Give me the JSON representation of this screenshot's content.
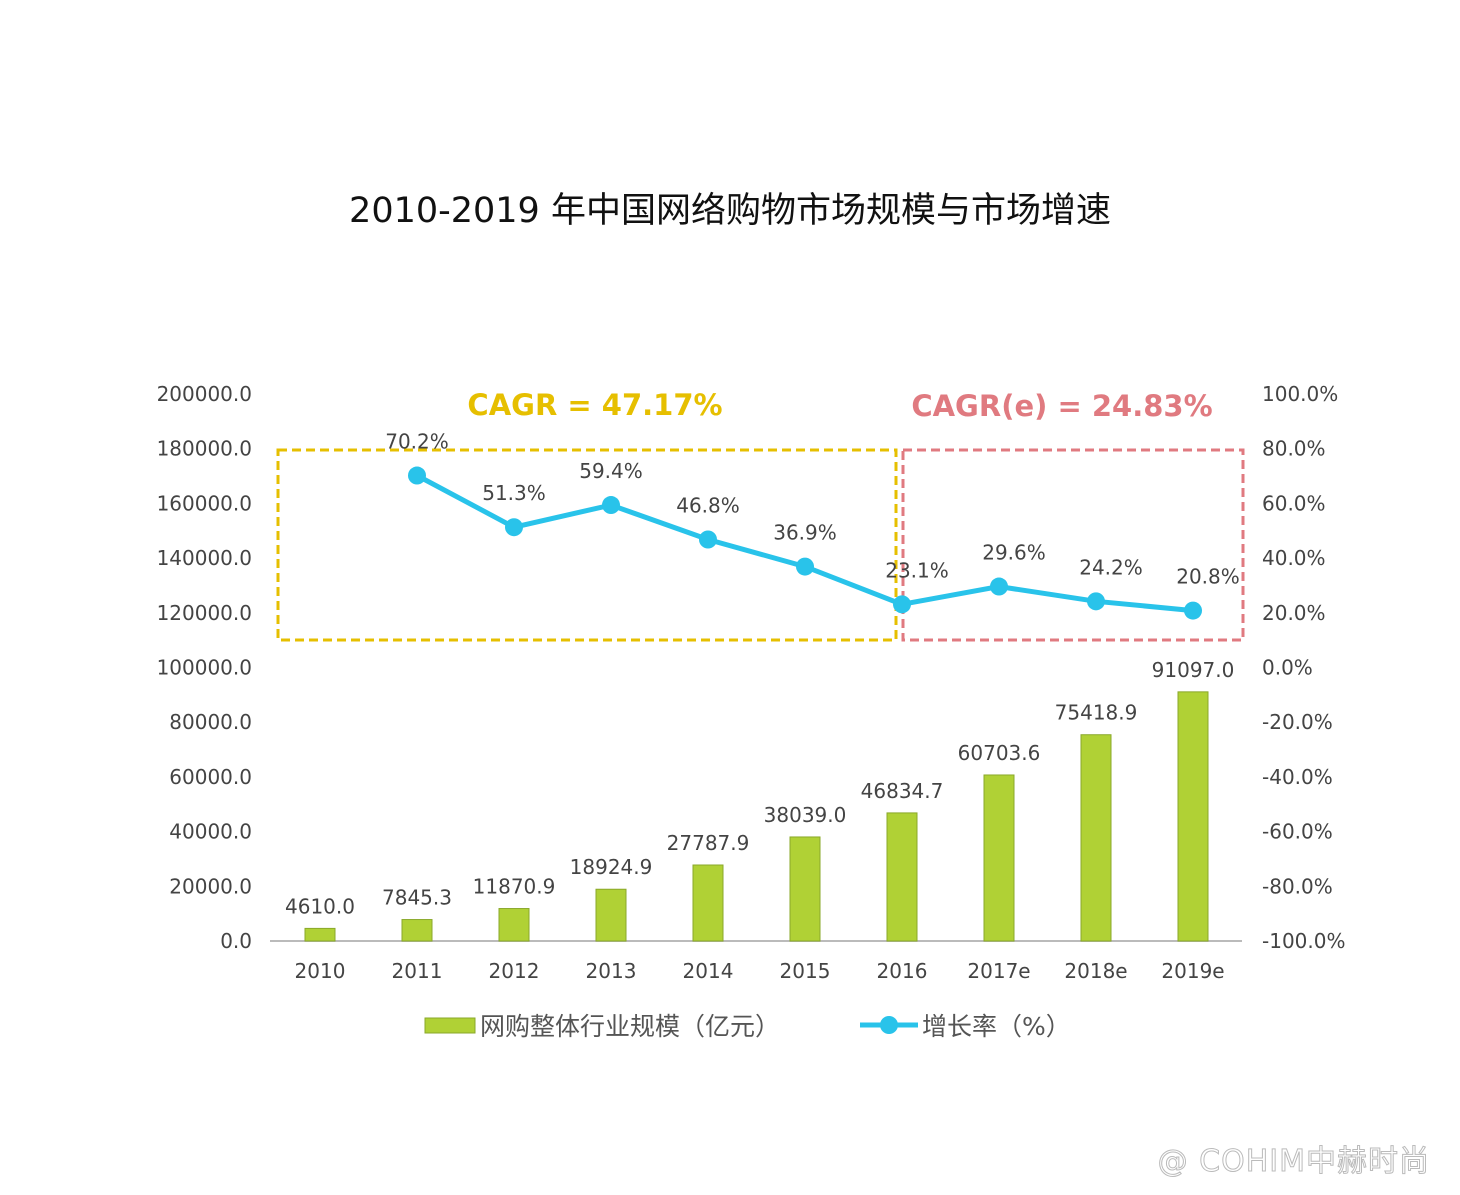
{
  "title": "2010-2019 年中国网络购物市场规模与市场增速",
  "watermark": "@ COHIM中赫时尚",
  "chart_data": {
    "type": "bar+line",
    "title": "2010-2019 年中国网络购物市场规模与市场增速",
    "categories": [
      "2010",
      "2011",
      "2012",
      "2013",
      "2014",
      "2015",
      "2016",
      "2017e",
      "2018e",
      "2019e"
    ],
    "series": [
      {
        "name": "网购整体行业规模（亿元）",
        "type": "bar",
        "axis": "left",
        "color": "#b0d135",
        "values": [
          4610.0,
          7845.3,
          11870.9,
          18924.9,
          27787.9,
          38039.0,
          46834.7,
          60703.6,
          75418.9,
          91097.0
        ],
        "labels": [
          "4610.0",
          "7845.3",
          "11870.9",
          "18924.9",
          "27787.9",
          "38039.0",
          "46834.7",
          "60703.6",
          "75418.9",
          "91097.0"
        ]
      },
      {
        "name": "增长率（%）",
        "type": "line",
        "axis": "right",
        "color": "#29c3ea",
        "values": [
          null,
          70.2,
          51.3,
          59.4,
          46.8,
          36.9,
          23.1,
          29.6,
          24.2,
          20.8
        ],
        "labels": [
          "",
          "70.2%",
          "51.3%",
          "59.4%",
          "46.8%",
          "36.9%",
          "23.1%",
          "29.6%",
          "24.2%",
          "20.8%"
        ]
      }
    ],
    "left_axis": {
      "ylim": [
        0,
        200000
      ],
      "ticks": [
        "0.0",
        "20000.0",
        "40000.0",
        "60000.0",
        "80000.0",
        "100000.0",
        "120000.0",
        "140000.0",
        "160000.0",
        "180000.0",
        "200000.0"
      ]
    },
    "right_axis": {
      "ylim": [
        -100,
        100
      ],
      "ticks": [
        "-100.0%",
        "-80.0%",
        "-60.0%",
        "-40.0%",
        "-20.0%",
        "0.0%",
        "20.0%",
        "40.0%",
        "60.0%",
        "80.0%",
        "100.0%"
      ]
    },
    "annotations": [
      {
        "text": "CAGR = 47.17%",
        "color": "#e6bf00",
        "span": [
          "2010",
          "2016"
        ]
      },
      {
        "text": "CAGR(e) = 24.83%",
        "color": "#e07a80",
        "span": [
          "2016",
          "2019e"
        ]
      }
    ],
    "grid": false,
    "legend": "bottom"
  }
}
